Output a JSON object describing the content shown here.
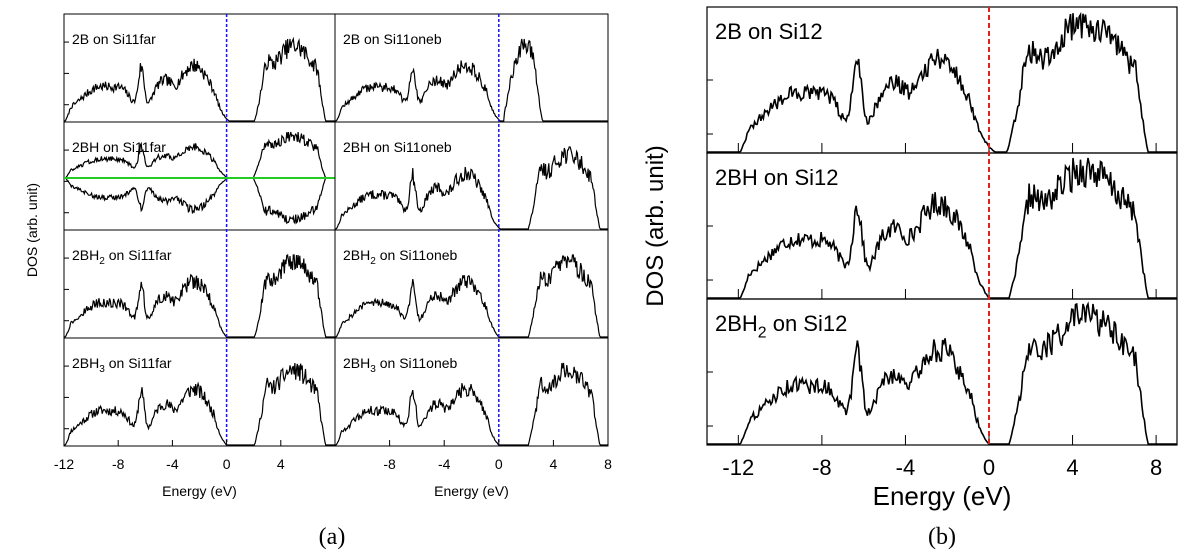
{
  "figure": {
    "panel_a_caption": "(a)",
    "panel_b_caption": "(b)"
  },
  "chart_data": [
    {
      "type": "line",
      "panel": "a",
      "title": "",
      "xlabel": "Energy (eV)",
      "ylabel": "DOS (arb. unit)",
      "xlim": [
        -12,
        8
      ],
      "fermi_level": 0,
      "fermi_line_color": "#1a1acc",
      "spin_zero_line_color": "#22cc22",
      "columns": [
        {
          "x_ticks": [
            -12,
            -8,
            -4,
            0,
            4
          ],
          "x_tick_labels": [
            "-12",
            "-8",
            "-4",
            "0",
            "4"
          ],
          "subplots": [
            {
              "label_pre": "2B  on Si11far",
              "label_sub": "",
              "label_post": "",
              "gap": [
                0.2,
                2.1
              ],
              "upper_band_end": 7.3,
              "spin_polarized": false
            },
            {
              "label_pre": "2BH on Si11far",
              "label_sub": "",
              "label_post": "",
              "gap": [
                0.15,
                2.0
              ],
              "upper_band_end": 7.3,
              "spin_polarized": true
            },
            {
              "label_pre": "2BH",
              "label_sub": "2",
              "label_post": " on Si11far",
              "gap": [
                0.0,
                2.1
              ],
              "upper_band_end": 7.3,
              "spin_polarized": false
            },
            {
              "label_pre": "2BH",
              "label_sub": "3",
              "label_post": " on Si11far",
              "gap": [
                0.0,
                2.1
              ],
              "upper_band_end": 7.3,
              "spin_polarized": false
            }
          ]
        },
        {
          "x_ticks": [
            -8,
            -4,
            0,
            4,
            8
          ],
          "x_tick_labels": [
            "-8",
            "-4",
            "0",
            "4",
            "8"
          ],
          "subplots": [
            {
              "label_pre": "2B  on Si11oneb",
              "label_sub": "",
              "label_post": "",
              "gap": [
                0.1,
                0.4
              ],
              "upper_band_end": 3.2,
              "spin_polarized": false
            },
            {
              "label_pre": "2BH  on Si11oneb",
              "label_sub": "",
              "label_post": "",
              "gap": [
                0.1,
                2.2
              ],
              "upper_band_end": 7.4,
              "spin_polarized": false
            },
            {
              "label_pre": "2BH",
              "label_sub": "2",
              "label_post": " on Si11oneb",
              "gap": [
                0.0,
                2.2
              ],
              "upper_band_end": 7.4,
              "spin_polarized": false
            },
            {
              "label_pre": "2BH",
              "label_sub": "3",
              "label_post": " on Si11oneb",
              "gap": [
                0.0,
                2.2
              ],
              "upper_band_end": 7.4,
              "spin_polarized": false
            }
          ]
        }
      ]
    },
    {
      "type": "line",
      "panel": "b",
      "title": "",
      "xlabel": "Energy (eV)",
      "ylabel": "DOS (arb. unit)",
      "xlim": [
        -13.5,
        9
      ],
      "x_ticks": [
        -12,
        -8,
        -4,
        0,
        4,
        8
      ],
      "x_tick_labels": [
        "-12",
        "-8",
        "-4",
        "0",
        "4",
        "8"
      ],
      "fermi_level": 0,
      "fermi_line_color": "#e0201e",
      "subplots": [
        {
          "label_pre": "2B  on Si12",
          "label_sub": "",
          "label_post": "",
          "gap": [
            0.3,
            0.9
          ],
          "upper_band_end": 7.6
        },
        {
          "label_pre": "2BH on Si12",
          "label_sub": "",
          "label_post": "",
          "gap": [
            0.0,
            1.0
          ],
          "upper_band_end": 7.6
        },
        {
          "label_pre": "2BH",
          "label_sub": "2",
          "label_post": " on Si12",
          "gap": [
            0.0,
            1.0
          ],
          "upper_band_end": 7.6
        }
      ]
    }
  ]
}
